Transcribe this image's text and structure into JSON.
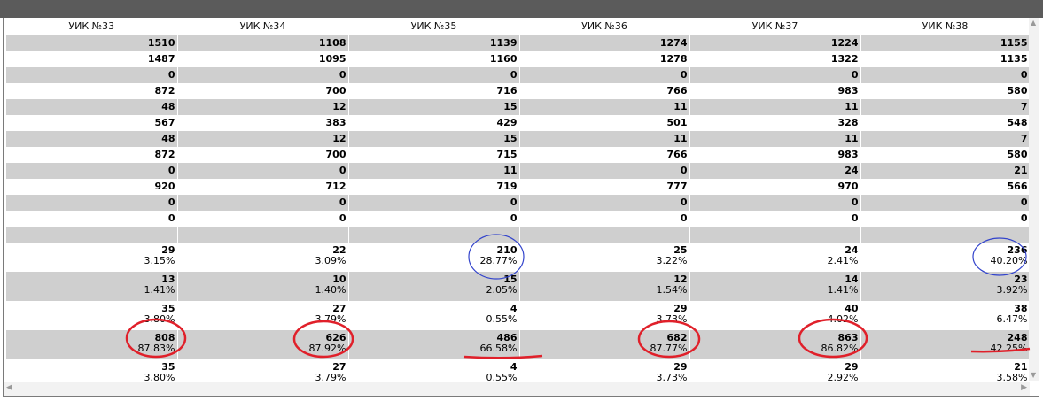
{
  "columns": [
    "УИК №33",
    "УИК №34",
    "УИК №35",
    "УИК №36",
    "УИК №37",
    "УИК №38"
  ],
  "rows": [
    {
      "kind": "single",
      "shade": "gray",
      "values": [
        "1510",
        "1108",
        "1139",
        "1274",
        "1224",
        "1155"
      ]
    },
    {
      "kind": "single",
      "shade": "white",
      "values": [
        "1487",
        "1095",
        "1160",
        "1278",
        "1322",
        "1135"
      ]
    },
    {
      "kind": "single",
      "shade": "gray",
      "values": [
        "0",
        "0",
        "0",
        "0",
        "0",
        "0"
      ]
    },
    {
      "kind": "single",
      "shade": "white",
      "values": [
        "872",
        "700",
        "716",
        "766",
        "983",
        "580"
      ]
    },
    {
      "kind": "single",
      "shade": "gray",
      "values": [
        "48",
        "12",
        "15",
        "11",
        "11",
        "7"
      ]
    },
    {
      "kind": "single",
      "shade": "white",
      "values": [
        "567",
        "383",
        "429",
        "501",
        "328",
        "548"
      ]
    },
    {
      "kind": "single",
      "shade": "gray",
      "values": [
        "48",
        "12",
        "15",
        "11",
        "11",
        "7"
      ]
    },
    {
      "kind": "single",
      "shade": "white",
      "values": [
        "872",
        "700",
        "715",
        "766",
        "983",
        "580"
      ]
    },
    {
      "kind": "single",
      "shade": "gray",
      "values": [
        "0",
        "0",
        "11",
        "0",
        "24",
        "21"
      ]
    },
    {
      "kind": "single",
      "shade": "white",
      "values": [
        "920",
        "712",
        "719",
        "777",
        "970",
        "566"
      ]
    },
    {
      "kind": "single",
      "shade": "gray",
      "values": [
        "0",
        "0",
        "0",
        "0",
        "0",
        "0"
      ]
    },
    {
      "kind": "single",
      "shade": "white",
      "values": [
        "0",
        "0",
        "0",
        "0",
        "0",
        "0"
      ]
    },
    {
      "kind": "blank",
      "shade": "gray",
      "values": [
        "",
        "",
        "",
        "",
        "",
        ""
      ]
    },
    {
      "kind": "double",
      "shade": "white",
      "values": [
        [
          "29",
          "3.15%"
        ],
        [
          "22",
          "3.09%"
        ],
        [
          "210",
          "28.77%"
        ],
        [
          "25",
          "3.22%"
        ],
        [
          "24",
          "2.41%"
        ],
        [
          "236",
          "40.20%"
        ]
      ]
    },
    {
      "kind": "double",
      "shade": "gray",
      "values": [
        [
          "13",
          "1.41%"
        ],
        [
          "10",
          "1.40%"
        ],
        [
          "15",
          "2.05%"
        ],
        [
          "12",
          "1.54%"
        ],
        [
          "14",
          "1.41%"
        ],
        [
          "23",
          "3.92%"
        ]
      ]
    },
    {
      "kind": "double",
      "shade": "white",
      "values": [
        [
          "35",
          "3.80%"
        ],
        [
          "27",
          "3.79%"
        ],
        [
          "4",
          "0.55%"
        ],
        [
          "29",
          "3.73%"
        ],
        [
          "40",
          "4.02%"
        ],
        [
          "38",
          "6.47%"
        ]
      ]
    },
    {
      "kind": "double",
      "shade": "gray",
      "values": [
        [
          "808",
          "87.83%"
        ],
        [
          "626",
          "87.92%"
        ],
        [
          "486",
          "66.58%"
        ],
        [
          "682",
          "87.77%"
        ],
        [
          "863",
          "86.82%"
        ],
        [
          "248",
          "42.25%"
        ]
      ]
    },
    {
      "kind": "double",
      "shade": "white",
      "values": [
        [
          "35",
          "3.80%"
        ],
        [
          "27",
          "3.79%"
        ],
        [
          "4",
          "0.55%"
        ],
        [
          "29",
          "3.73%"
        ],
        [
          "29",
          "2.92%"
        ],
        [
          "21",
          "3.58%"
        ]
      ]
    }
  ],
  "colors": {
    "gray_row": "#cfcfcf",
    "red_marker": "#e0202a",
    "blue_marker": "#3344cc"
  },
  "icons": {
    "scroll_up": "▲",
    "scroll_down": "▼",
    "scroll_left": "◀",
    "scroll_right": "▶"
  }
}
